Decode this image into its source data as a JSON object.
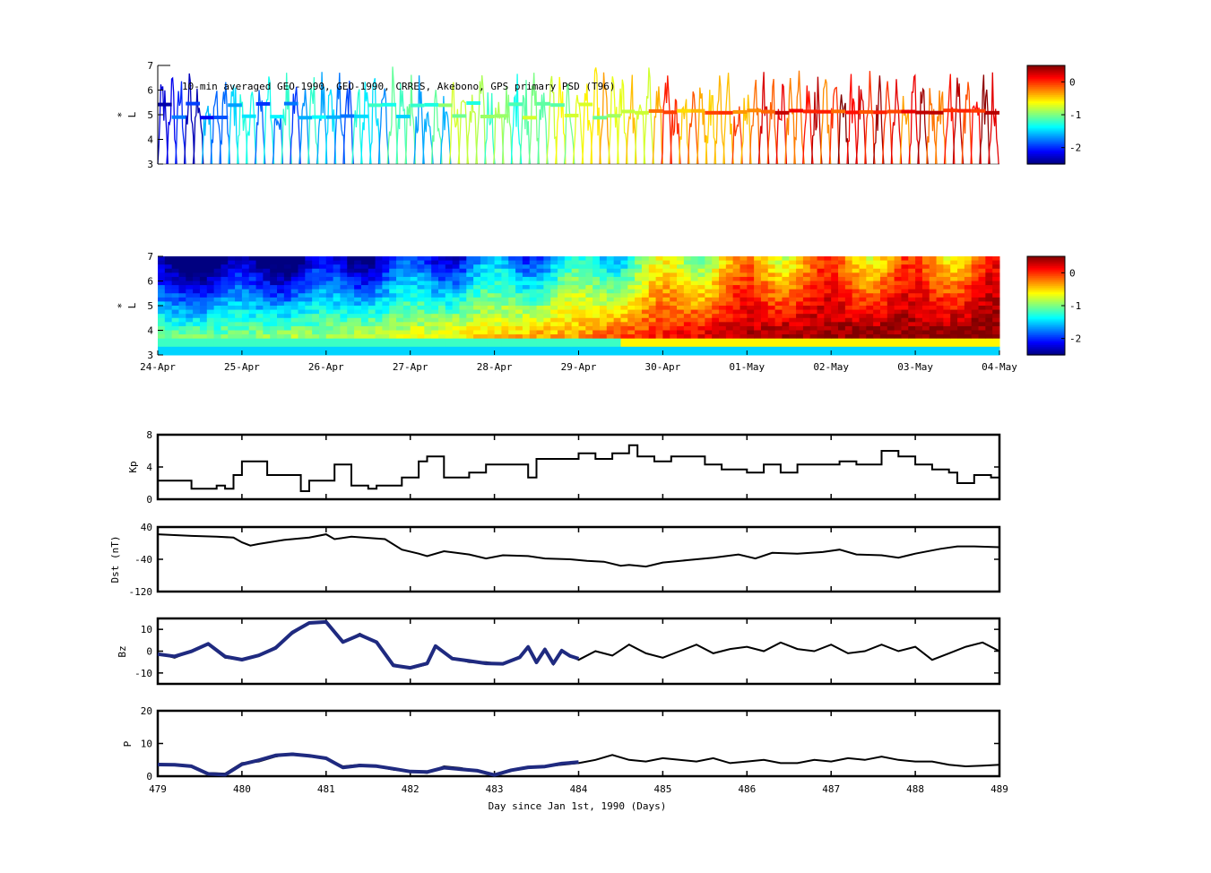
{
  "chart_data": [
    {
      "type": "scatter",
      "panel": "orbit-psd",
      "annotation": "10-min averaged GEO-1990, GEO-1990, CRRES, Akebono, GPS  primary PSD (T96)",
      "ylabel": "L",
      "ylabel_mark": "*",
      "ylim": [
        3,
        7
      ],
      "yticks": [
        "3",
        "4",
        "5",
        "6",
        "7"
      ],
      "x": [
        479,
        480,
        481,
        482,
        483,
        484,
        485,
        486,
        487,
        488,
        489
      ],
      "level_trend": [
        -2.1,
        -1.7,
        -1.6,
        -1.3,
        -1.0,
        -0.9,
        -0.3,
        0.0,
        0.1,
        0.1,
        0.2
      ],
      "colorbar": {
        "ticks": [
          "0",
          "-1",
          "-2"
        ],
        "range": [
          -2.5,
          0.5
        ],
        "colormap": "jet"
      }
    },
    {
      "type": "heatmap",
      "panel": "reanalysis-psd",
      "ylabel": "L",
      "ylabel_mark": "*",
      "ylim": [
        3,
        7
      ],
      "yticks": [
        "3",
        "4",
        "5",
        "6",
        "7"
      ],
      "xticks": [
        "24-Apr",
        "25-Apr",
        "26-Apr",
        "27-Apr",
        "28-Apr",
        "29-Apr",
        "30-Apr",
        "01-May",
        "02-May",
        "03-May",
        "04-May"
      ],
      "x": [
        479,
        480,
        481,
        482,
        483,
        484,
        485,
        486,
        487,
        488,
        489
      ],
      "level_trend": [
        -1.6,
        -1.5,
        -1.4,
        -1.2,
        -1.0,
        -0.8,
        -0.4,
        -0.1,
        0.0,
        0.0,
        0.1
      ],
      "colorbar": {
        "ticks": [
          "0",
          "-1",
          "-2"
        ],
        "range": [
          -2.5,
          0.5
        ],
        "colormap": "jet"
      }
    },
    {
      "type": "line",
      "panel": "kp",
      "ylabel": "Kp",
      "ylim": [
        0,
        8
      ],
      "yticks": [
        "0",
        "4",
        "8"
      ],
      "x": [
        479.0,
        479.3,
        479.4,
        479.7,
        479.8,
        479.9,
        480.0,
        480.2,
        480.3,
        480.6,
        480.7,
        480.8,
        481.0,
        481.1,
        481.3,
        481.5,
        481.6,
        481.9,
        482.1,
        482.2,
        482.4,
        482.5,
        482.7,
        482.9,
        483.2,
        483.4,
        483.5,
        483.8,
        484.0,
        484.2,
        484.4,
        484.6,
        484.7,
        484.9,
        485.1,
        485.3,
        485.5,
        485.7,
        485.9,
        486.0,
        486.2,
        486.4,
        486.6,
        486.9,
        487.1,
        487.3,
        487.5,
        487.6,
        487.8,
        488.0,
        488.2,
        488.4,
        488.5,
        488.7,
        488.9,
        489.0
      ],
      "y": [
        2.3,
        2.3,
        1.3,
        1.7,
        1.3,
        3.0,
        4.7,
        4.7,
        3.0,
        3.0,
        1.0,
        2.3,
        2.3,
        4.3,
        1.7,
        1.3,
        1.7,
        2.7,
        4.7,
        5.3,
        2.7,
        2.7,
        3.3,
        4.3,
        4.3,
        2.7,
        5.0,
        5.0,
        5.7,
        5.0,
        5.7,
        6.7,
        5.3,
        4.7,
        5.3,
        5.3,
        4.3,
        3.7,
        3.7,
        3.3,
        4.3,
        3.3,
        4.3,
        4.3,
        4.7,
        4.3,
        4.3,
        6.0,
        5.3,
        4.3,
        3.7,
        3.3,
        2.0,
        3.0,
        2.7,
        2.7
      ]
    },
    {
      "type": "line",
      "panel": "dst",
      "ylabel": "Dst (nT)",
      "ylim": [
        -120,
        40
      ],
      "yticks": [
        "-120",
        "-40",
        "40"
      ],
      "x": [
        479.0,
        479.2,
        479.4,
        479.7,
        479.9,
        480.0,
        480.1,
        480.2,
        480.5,
        480.8,
        481.0,
        481.1,
        481.3,
        481.7,
        481.9,
        482.1,
        482.2,
        482.4,
        482.7,
        482.9,
        483.1,
        483.4,
        483.6,
        483.9,
        484.1,
        484.3,
        484.5,
        484.6,
        484.8,
        485.0,
        485.3,
        485.6,
        485.9,
        486.1,
        486.3,
        486.6,
        486.9,
        487.1,
        487.3,
        487.6,
        487.8,
        488.0,
        488.3,
        488.5,
        488.7,
        489.0
      ],
      "y": [
        22,
        20,
        18,
        16,
        14,
        2,
        -6,
        -2,
        8,
        14,
        22,
        10,
        16,
        10,
        -16,
        -26,
        -32,
        -20,
        -28,
        -38,
        -30,
        -32,
        -38,
        -40,
        -44,
        -46,
        -56,
        -54,
        -58,
        -48,
        -42,
        -36,
        -28,
        -38,
        -24,
        -26,
        -22,
        -16,
        -28,
        -30,
        -36,
        -26,
        -14,
        -8,
        -8,
        -10
      ]
    },
    {
      "type": "line",
      "panel": "bz",
      "ylabel": "Bz",
      "ylim": [
        -15,
        15
      ],
      "yticks": [
        "-10",
        "0",
        "10"
      ],
      "x": [
        479.0,
        479.2,
        479.4,
        479.6,
        479.8,
        480.0,
        480.2,
        480.4,
        480.6,
        480.8,
        481.0,
        481.2,
        481.4,
        481.6,
        481.8,
        482.0,
        482.2,
        482.3,
        482.5,
        482.7,
        482.9,
        483.1,
        483.3,
        483.4,
        483.5,
        483.6,
        483.7,
        483.8,
        483.9,
        484.0,
        484.2,
        484.4,
        484.6,
        484.8,
        485.0,
        485.2,
        485.4,
        485.6,
        485.8,
        486.0,
        486.2,
        486.4,
        486.6,
        486.8,
        487.0,
        487.2,
        487.4,
        487.6,
        487.8,
        488.0,
        488.2,
        488.4,
        488.6,
        488.8,
        489.0
      ],
      "y": [
        -1,
        -3,
        0,
        3,
        -3,
        -4,
        -2,
        2,
        8,
        13,
        13,
        4,
        8,
        4,
        -6,
        -8,
        -6,
        2,
        -3,
        -5,
        -5,
        -6,
        -3,
        2,
        -5,
        1,
        -6,
        0,
        -2,
        -4,
        0,
        -2,
        3,
        -1,
        -3,
        0,
        3,
        -1,
        1,
        2,
        0,
        4,
        1,
        0,
        3,
        -1,
        0,
        3,
        0,
        2,
        -4,
        -1,
        2,
        4,
        0
      ],
      "series": [
        {
          "name": "",
          "color": "#1f2a80",
          "x_range": [
            479.0,
            484.0
          ]
        },
        {
          "name": "",
          "color": "#000000",
          "x_range": [
            484.0,
            489.0
          ]
        }
      ]
    },
    {
      "type": "line",
      "panel": "pressure",
      "ylabel": "P",
      "xlabel": "Day since Jan 1st, 1990 (Days)",
      "ylim": [
        0,
        20
      ],
      "yticks": [
        "0",
        "10",
        "20"
      ],
      "xticks": [
        "479",
        "480",
        "481",
        "482",
        "483",
        "484",
        "485",
        "486",
        "487",
        "488",
        "489"
      ],
      "x": [
        479.0,
        479.2,
        479.4,
        479.6,
        479.8,
        480.0,
        480.2,
        480.4,
        480.6,
        480.8,
        481.0,
        481.2,
        481.4,
        481.6,
        481.8,
        482.0,
        482.2,
        482.4,
        482.6,
        482.8,
        483.0,
        483.2,
        483.4,
        483.6,
        483.8,
        484.0,
        484.2,
        484.4,
        484.6,
        484.8,
        485.0,
        485.2,
        485.4,
        485.6,
        485.8,
        486.0,
        486.2,
        486.4,
        486.6,
        486.8,
        487.0,
        487.2,
        487.4,
        487.6,
        487.8,
        488.0,
        488.2,
        488.4,
        488.6,
        488.8,
        489.0
      ],
      "y": [
        3.5,
        3.5,
        3.0,
        1.0,
        0.8,
        4.0,
        4.5,
        6.0,
        7.0,
        6.0,
        5.5,
        3.0,
        3.5,
        3.0,
        2.0,
        1.5,
        1.0,
        3.0,
        2.5,
        1.5,
        0.5,
        2.0,
        2.5,
        3.0,
        3.5,
        4.0,
        5.0,
        6.5,
        5.0,
        4.5,
        5.5,
        5.0,
        4.5,
        5.5,
        4.0,
        4.5,
        5.0,
        4.0,
        4.0,
        5.0,
        4.5,
        5.5,
        5.0,
        6.0,
        5.0,
        4.5,
        4.5,
        3.5,
        3.0,
        3.2,
        3.5
      ],
      "series": [
        {
          "name": "",
          "color": "#1f2a80",
          "x_range": [
            479.0,
            484.0
          ]
        },
        {
          "name": "",
          "color": "#000000",
          "x_range": [
            484.0,
            489.0
          ]
        }
      ]
    }
  ]
}
